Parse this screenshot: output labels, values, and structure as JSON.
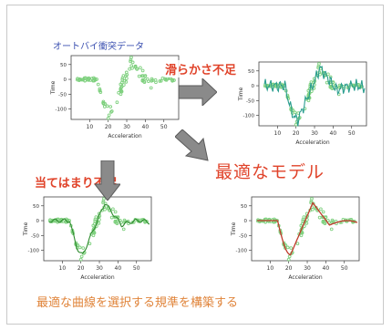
{
  "title_line": "オートバイ衝突データ",
  "notes": {
    "smooth": "滑らかさ不足",
    "fit": "当てはまり不足"
  },
  "headline": "最適なモデル",
  "footer": "最適な曲線を選択する規準を構築する",
  "colors": {
    "title": "#3a4fb0",
    "note": "#e0432a",
    "footer": "#e0843a",
    "points": "#7ed07e",
    "curve_overfit": "#2a9d8f",
    "curve_underfit": "#2e8b2e",
    "curve_optimal": "#c0392b",
    "arrow": "#8a8a8a"
  },
  "chart_data": [
    {
      "type": "scatter",
      "panel": "data",
      "xlabel": "Acceleration",
      "ylabel": "Time",
      "x_ticks": [
        "10",
        "20",
        "30",
        "40",
        "50"
      ],
      "y_ticks": [
        "50",
        "0",
        "-50",
        "-100"
      ],
      "curve": "none"
    },
    {
      "type": "scatter",
      "panel": "overfit",
      "xlabel": "Acceleration",
      "ylabel": "Time",
      "x_ticks": [
        "10",
        "20",
        "30",
        "40",
        "50"
      ],
      "y_ticks": [
        "50",
        "0",
        "-50",
        "-100"
      ],
      "curve": "wiggly"
    },
    {
      "type": "scatter",
      "panel": "underfit",
      "xlabel": "Acceleration",
      "ylabel": "Time",
      "x_ticks": [
        "10",
        "20",
        "30",
        "40",
        "50"
      ],
      "y_ticks": [
        "50",
        "0",
        "-50",
        "-100"
      ],
      "curve": "rough"
    },
    {
      "type": "scatter",
      "panel": "optimal",
      "xlabel": "Acceleration",
      "ylabel": "Time",
      "x_ticks": [
        "10",
        "20",
        "30",
        "40",
        "50"
      ],
      "y_ticks": [
        "50",
        "0",
        "-50",
        "-100"
      ],
      "curve": "smooth"
    }
  ]
}
